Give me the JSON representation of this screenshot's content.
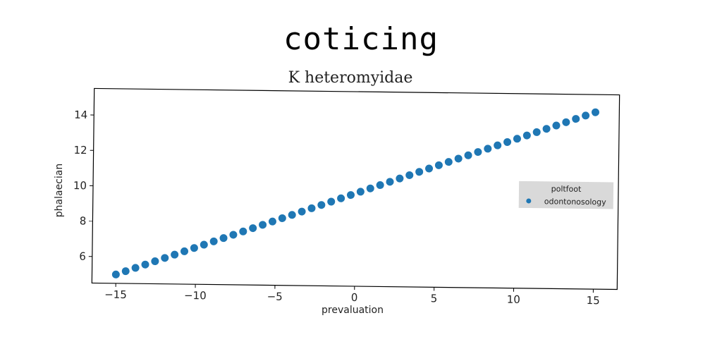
{
  "page": {
    "title": "coticing"
  },
  "chart_data": {
    "type": "scatter",
    "title": "K heteromyidae",
    "xlabel": "prevaluation",
    "ylabel": "phalaecian",
    "xlim": [
      -16.5,
      16.5
    ],
    "ylim": [
      4.5,
      15.5
    ],
    "xticks": [
      -15,
      -10,
      -5,
      0,
      5,
      10,
      15
    ],
    "xtick_labels": [
      "−15",
      "−10",
      "−5",
      "0",
      "5",
      "10",
      "15"
    ],
    "yticks": [
      6,
      8,
      10,
      12,
      14
    ],
    "ytick_labels": [
      "6",
      "8",
      "10",
      "12",
      "14"
    ],
    "grid": false,
    "legend": {
      "title": "poltfoot",
      "position": "right"
    },
    "series": [
      {
        "name": "odontonosology",
        "color": "#1f77b4",
        "x_start": -15,
        "x_end": 15,
        "n_points": 50,
        "y_start": 5,
        "y_end": 14.5
      }
    ]
  }
}
